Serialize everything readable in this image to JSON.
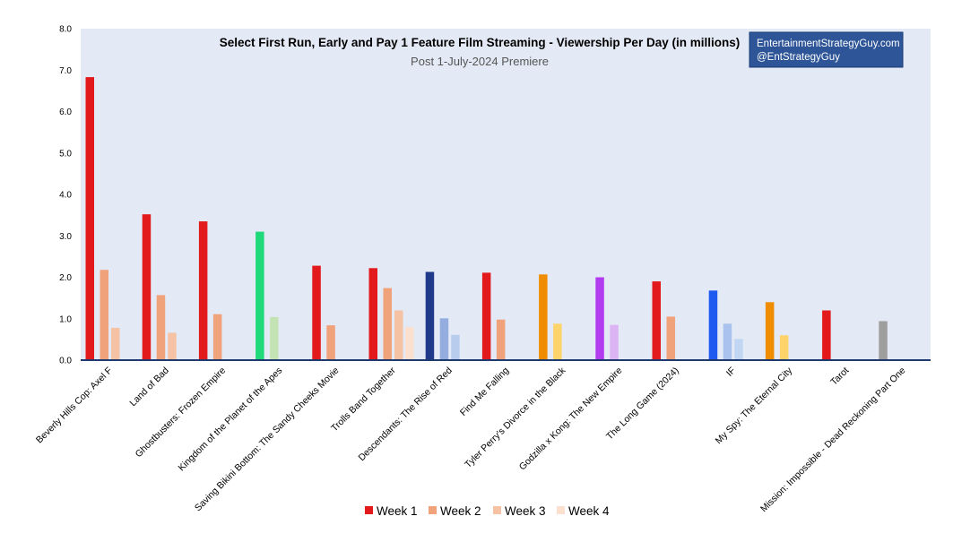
{
  "chart_data": {
    "type": "bar",
    "title": "Select First Run, Early and Pay 1 Feature Film Streaming - Viewership Per Day (in millions)",
    "subtitle": "Post 1-July-2024 Premiere",
    "brand_lines": [
      "EntertainmentStrategyGuy.com",
      "@EntStrategyGuy"
    ],
    "ylim": [
      0,
      8
    ],
    "y_ticks": [
      "0.0",
      "1.0",
      "2.0",
      "3.0",
      "4.0",
      "5.0",
      "6.0",
      "7.0",
      "8.0"
    ],
    "grid": false,
    "legend_position": "bottom",
    "legend": [
      {
        "name": "Week 1",
        "color": "#e31a1c"
      },
      {
        "name": "Week 2",
        "color": "#f0a27a"
      },
      {
        "name": "Week 3",
        "color": "#f5c3a3"
      },
      {
        "name": "Week 4",
        "color": "#fbe0d0"
      }
    ],
    "categories": [
      "Beverly Hills Cop: Axel F",
      "Land of Bad",
      "Ghostbusters: Frozen Empire",
      "Kingdom of the Planet of the Apes",
      "Saving Bikini Bottom: The Sandy Cheeks Movie",
      "Trolls Band Together",
      "Descendants: The Rise of Red",
      "Find Me Falling",
      "Tyler Perry's Divorce in the Black",
      "Godzilla x Kong: The New Empire",
      "The Long Game (2024)",
      "IF",
      "My Spy: The Eternal City",
      "Tarot",
      "Mission: Impossible - Dead Reckoning Part One"
    ],
    "series": [
      {
        "name": "Week 1",
        "values": [
          6.83,
          3.52,
          3.35,
          3.1,
          2.28,
          2.22,
          2.13,
          2.11,
          2.07,
          2.0,
          1.9,
          1.68,
          1.4,
          1.2,
          0.94
        ]
      },
      {
        "name": "Week 2",
        "values": [
          2.18,
          1.57,
          1.11,
          1.04,
          0.84,
          1.74,
          1.01,
          0.98,
          0.88,
          0.85,
          1.05,
          0.88,
          0.6,
          null,
          null
        ]
      },
      {
        "name": "Week 3",
        "values": [
          0.78,
          0.66,
          null,
          null,
          null,
          1.2,
          0.61,
          null,
          null,
          null,
          null,
          0.51,
          null,
          null,
          null
        ]
      },
      {
        "name": "Week 4",
        "values": [
          null,
          null,
          null,
          null,
          null,
          0.8,
          null,
          null,
          null,
          null,
          null,
          null,
          null,
          null,
          null
        ]
      }
    ],
    "bar_colors": [
      [
        "#e31a1c",
        "#f0a27a",
        "#f5c3a3",
        "#fbe0d0"
      ],
      [
        "#e31a1c",
        "#f0a27a",
        "#f5c3a3",
        "#fbe0d0"
      ],
      [
        "#e31a1c",
        "#f0a27a",
        "#f5c3a3",
        "#fbe0d0"
      ],
      [
        "#1fd97a",
        "#c4e3b5",
        "#c4e3b5",
        "#c4e3b5"
      ],
      [
        "#e31a1c",
        "#f0a27a",
        "#f5c3a3",
        "#fbe0d0"
      ],
      [
        "#e31a1c",
        "#f0a27a",
        "#f5c3a3",
        "#fbe0d0"
      ],
      [
        "#1f3a8a",
        "#93aede",
        "#b8cdee",
        "#b8cdee"
      ],
      [
        "#e31a1c",
        "#f0a27a",
        "#f5c3a3",
        "#fbe0d0"
      ],
      [
        "#f08c00",
        "#fdd36a",
        "#fdd36a",
        "#fdd36a"
      ],
      [
        "#b33cf0",
        "#dcb3f3",
        "#dcb3f3",
        "#dcb3f3"
      ],
      [
        "#e31a1c",
        "#f0a27a",
        "#f5c3a3",
        "#fbe0d0"
      ],
      [
        "#1f5af0",
        "#a9c3ee",
        "#c1d6f3",
        "#c1d6f3"
      ],
      [
        "#f08c00",
        "#fdd36a",
        "#fdd36a",
        "#fdd36a"
      ],
      [
        "#e31a1c",
        "#f0a27a",
        "#f5c3a3",
        "#fbe0d0"
      ],
      [
        "#9e9e9e",
        "#c8c8c8",
        "#c8c8c8",
        "#c8c8c8"
      ]
    ],
    "colors": {
      "plot_background": "#e3e9f5",
      "axis_line": "#1f3a6e",
      "brand_box": "#2d5597"
    }
  }
}
